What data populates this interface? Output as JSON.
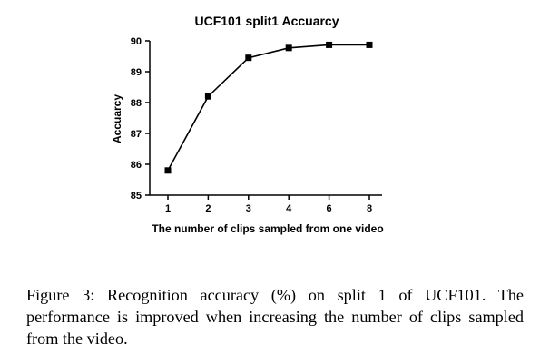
{
  "chart_data": {
    "type": "line",
    "title": "UCF101 split1 Accuarcy",
    "xlabel": "The number of clips sampled from one video",
    "ylabel": "Accuarcy",
    "categories": [
      "1",
      "2",
      "3",
      "4",
      "6",
      "8"
    ],
    "series": [
      {
        "values": [
          85.8,
          88.2,
          89.45,
          89.77,
          89.87,
          89.87
        ]
      }
    ],
    "ylim": [
      85,
      90
    ],
    "yticks": [
      "85",
      "86",
      "87",
      "88",
      "89",
      "90"
    ],
    "grid": false,
    "marker": "square",
    "color": "#000000"
  },
  "caption": "Figure 3: Recognition accuracy (%) on split 1 of UCF101. The performance is improved when increasing the number of clips sampled from the video."
}
